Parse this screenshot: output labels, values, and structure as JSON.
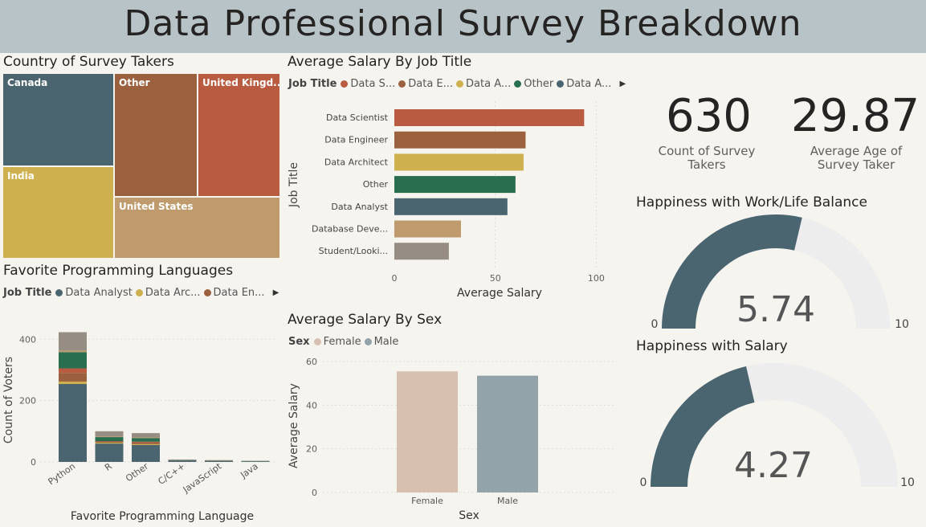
{
  "header": {
    "title": "Data Professional Survey Breakdown"
  },
  "treemap": {
    "title": "Country of Survey Takers",
    "tiles": [
      {
        "label": "Canada",
        "color": "#4a6470"
      },
      {
        "label": "India",
        "color": "#cfb04e"
      },
      {
        "label": "Other",
        "color": "#9b603d"
      },
      {
        "label": "United Kingd...",
        "color": "#b85b40"
      },
      {
        "label": "United States",
        "color": "#bf9a6c"
      }
    ]
  },
  "salary_by_job": {
    "title": "Average Salary By Job Title",
    "legend_title": "Job Title",
    "legend": [
      {
        "label": "Data S...",
        "color": "#b85b40"
      },
      {
        "label": "Data E...",
        "color": "#9b603d"
      },
      {
        "label": "Data A...",
        "color": "#cfb04e"
      },
      {
        "label": "Other",
        "color": "#2a6e50"
      },
      {
        "label": "Data A...",
        "color": "#4a6470"
      }
    ],
    "y_axis_label": "Job Title",
    "x_axis_label": "Average Salary",
    "x_ticks": [
      "0",
      "50",
      "100"
    ]
  },
  "languages": {
    "title": "Favorite Programming Languages",
    "legend_title": "Job Title",
    "legend": [
      {
        "label": "Data Analyst",
        "color": "#4a6470"
      },
      {
        "label": "Data Arc...",
        "color": "#cfb04e"
      },
      {
        "label": "Data En...",
        "color": "#9b603d"
      }
    ],
    "y_axis_label": "Count of Voters",
    "x_axis_label": "Favorite Programming Language",
    "y_ticks": [
      "0",
      "200",
      "400"
    ]
  },
  "salary_by_sex": {
    "title": "Average Salary By Sex",
    "legend_title": "Sex",
    "legend": [
      {
        "label": "Female",
        "color": "#d8c0b0"
      },
      {
        "label": "Male",
        "color": "#93a3aa"
      }
    ],
    "y_axis_label": "Average Salary",
    "x_axis_label": "Sex",
    "y_ticks": [
      "0",
      "20",
      "40",
      "60"
    ]
  },
  "kpis": {
    "count": {
      "value": "630",
      "label_line1": "Count of Survey",
      "label_line2": "Takers"
    },
    "age": {
      "value": "29.87",
      "label_line1": "Average Age of",
      "label_line2": "Survey Taker"
    }
  },
  "gauges": {
    "worklife": {
      "title": "Happiness with Work/Life Balance",
      "value_text": "5.74",
      "min": "0",
      "max": "10"
    },
    "salary": {
      "title": "Happiness with Salary",
      "value_text": "4.27",
      "min": "0",
      "max": "10"
    }
  },
  "chart_data": [
    {
      "type": "treemap",
      "title": "Country of Survey Takers",
      "categories": [
        "Canada",
        "India",
        "Other",
        "United Kingd...",
        "United States"
      ]
    },
    {
      "type": "bar",
      "orientation": "horizontal",
      "title": "Average Salary By Job Title",
      "categories": [
        "Data Scientist",
        "Data Engineer",
        "Data Architect",
        "Other",
        "Data Analyst",
        "Database Deve...",
        "Student/Looki..."
      ],
      "values": [
        94,
        65,
        64,
        60,
        56,
        33,
        27
      ],
      "colors": [
        "#b85b40",
        "#9b603d",
        "#cfb04e",
        "#2a6e50",
        "#4a6470",
        "#bf9a6c",
        "#968d84"
      ],
      "xlabel": "Average Salary",
      "ylabel": "Job Title",
      "xlim": [
        0,
        105
      ]
    },
    {
      "type": "bar",
      "stacked": true,
      "title": "Favorite Programming Languages",
      "categories": [
        "Python",
        "R",
        "Other",
        "C/C++",
        "JavaScript",
        "Java"
      ],
      "series": [
        {
          "name": "Data Analyst",
          "values": [
            254,
            60,
            55,
            5,
            3,
            2
          ],
          "color": "#4a6470"
        },
        {
          "name": "Data Arc...",
          "values": [
            8,
            3,
            3,
            0,
            0,
            0
          ],
          "color": "#cfb04e"
        },
        {
          "name": "Data En...",
          "values": [
            28,
            5,
            5,
            1,
            1,
            0
          ],
          "color": "#9b603d"
        },
        {
          "values": [
            15,
            0,
            3,
            0,
            0,
            0
          ],
          "color": "#b85b40"
        },
        {
          "values": [
            53,
            13,
            12,
            1,
            1,
            1
          ],
          "color": "#2a6e50"
        },
        {
          "values": [
            5,
            2,
            2,
            0,
            0,
            0
          ],
          "color": "#bf9a6c"
        },
        {
          "values": [
            60,
            17,
            14,
            1,
            1,
            1
          ],
          "color": "#968d84"
        }
      ],
      "xlabel": "Favorite Programming Language",
      "ylabel": "Count of Voters",
      "ylim": [
        0,
        440
      ]
    },
    {
      "type": "bar",
      "title": "Average Salary By Sex",
      "categories": [
        "Female",
        "Male"
      ],
      "values": [
        55.5,
        53.5
      ],
      "colors": [
        "#d8c0b0",
        "#93a3aa"
      ],
      "xlabel": "Sex",
      "ylabel": "Average Salary",
      "ylim": [
        0,
        60
      ]
    },
    {
      "type": "gauge",
      "title": "Happiness with Work/Life Balance",
      "value": 5.74,
      "min": 0,
      "max": 10
    },
    {
      "type": "gauge",
      "title": "Happiness with Salary",
      "value": 4.27,
      "min": 0,
      "max": 10
    }
  ]
}
